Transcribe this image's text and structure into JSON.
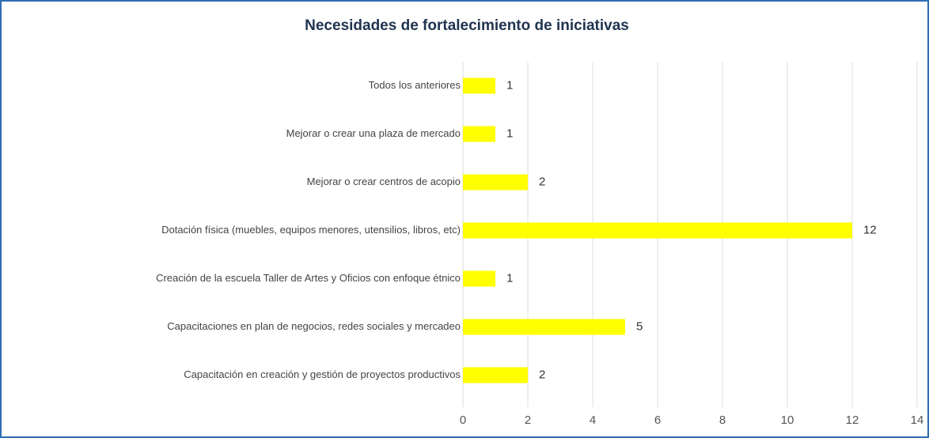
{
  "chart_data": {
    "type": "bar",
    "orientation": "horizontal",
    "title": "Necesidades de fortalecimiento de iniciativas",
    "categories": [
      "Todos los anteriores",
      "Mejorar o crear una plaza de mercado",
      "Mejorar o crear centros de acopio",
      "Dotación física (muebles, equipos menores, utensilios, libros, etc)",
      "Creación de la escuela Taller de Artes y Oficios con enfoque étnico",
      "Capacitaciones en plan de negocios, redes sociales y mercadeo",
      "Capacitación en creación y gestión de proyectos productivos"
    ],
    "values": [
      1,
      1,
      2,
      12,
      1,
      5,
      2
    ],
    "color": "#ffff00",
    "xlim": [
      0,
      14
    ],
    "xticks": [
      0,
      2,
      4,
      6,
      8,
      10,
      12,
      14
    ],
    "grid": true
  }
}
